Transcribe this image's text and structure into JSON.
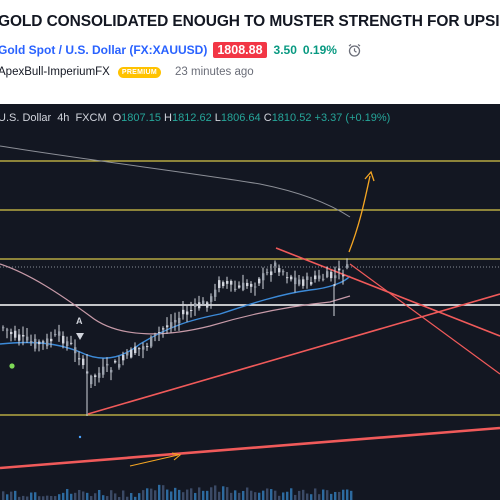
{
  "idea": {
    "title": "GOLD CONSOLIDATED ENOUGH TO MUSTER STRENGTH FOR UPSIDE",
    "symbol_link": "Gold Spot / U.S. Dollar (FX:XAUUSD)",
    "price": "1808.88",
    "change": "3.50",
    "change_pct": "0.19%",
    "author": "ApexBull-ImperiumFX",
    "badge": "PREMIUM",
    "published": "23 minutes ago"
  },
  "legend": {
    "symbol": "U.S. Dollar",
    "interval": "4h",
    "source": "FXCM",
    "o_label": "O",
    "o": "1807.15",
    "h_label": "H",
    "h": "1812.62",
    "l_label": "L",
    "l": "1806.64",
    "c_label": "C",
    "c": "1810.52",
    "change": "+3.37 (+0.19%)"
  },
  "marker": {
    "label": "A"
  },
  "colors": {
    "chart_bg": "#131722",
    "bull": "#26a69a",
    "bear": "#ef5350",
    "candle": "#d1d4dc",
    "trendline": "#f05a5a",
    "hline_yellow": "#d6c64a",
    "hline_white": "#ffffff",
    "arrow": "#f5a623",
    "ma_blue": "#3c8ad8",
    "ma_pink": "#c79aa8"
  }
}
